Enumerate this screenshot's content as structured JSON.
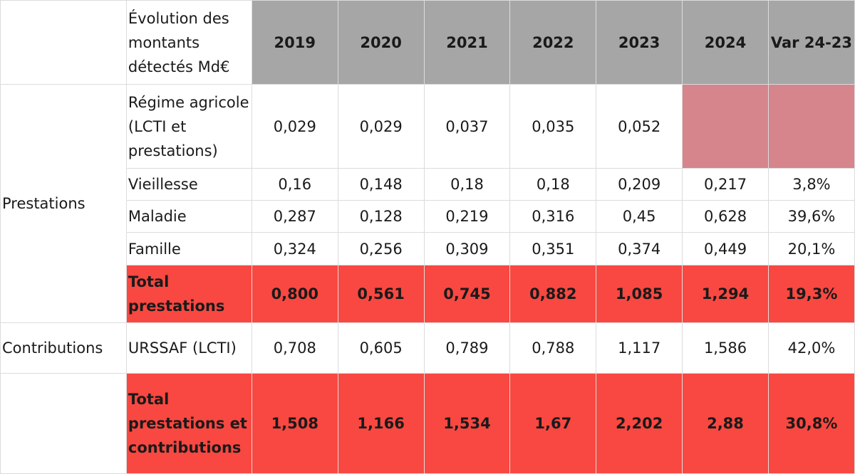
{
  "table": {
    "header": {
      "title": "Évolution des montants détectés Md€",
      "columns": [
        "2019",
        "2020",
        "2021",
        "2022",
        "2023",
        "2024",
        "Var 24-23"
      ]
    },
    "groups": {
      "prestations": "Prestations",
      "contributions": "Contributions"
    },
    "rows": [
      {
        "label": "Régime agricole (LCTI et prestations)",
        "values": [
          "0,029",
          "0,029",
          "0,037",
          "0,035",
          "0,052",
          "",
          ""
        ]
      },
      {
        "label": "Vieillesse",
        "values": [
          "0,16",
          "0,148",
          "0,18",
          "0,18",
          "0,209",
          "0,217",
          "3,8%"
        ]
      },
      {
        "label": "Maladie",
        "values": [
          "0,287",
          "0,128",
          "0,219",
          "0,316",
          "0,45",
          "0,628",
          "39,6%"
        ]
      },
      {
        "label": "Famille",
        "values": [
          "0,324",
          "0,256",
          "0,309",
          "0,351",
          "0,374",
          "0,449",
          "20,1%"
        ]
      },
      {
        "label": "Total prestations",
        "values": [
          "0,800",
          "0,561",
          "0,745",
          "0,882",
          "1,085",
          "1,294",
          "19,3%"
        ]
      },
      {
        "label": "URSSAF (LCTI)",
        "values": [
          "0,708",
          "0,605",
          "0,789",
          "0,788",
          "1,117",
          "1,586",
          "42,0%"
        ]
      },
      {
        "label": "Total prestations et contributions",
        "values": [
          "1,508",
          "1,166",
          "1,534",
          "1,67",
          "2,202",
          "2,88",
          "30,8%"
        ]
      }
    ],
    "colors": {
      "header_fill": "#a6a6a6",
      "total_fill": "#f84841",
      "missing_fill": "#d5858b",
      "grid": "#dcdcdc"
    }
  }
}
